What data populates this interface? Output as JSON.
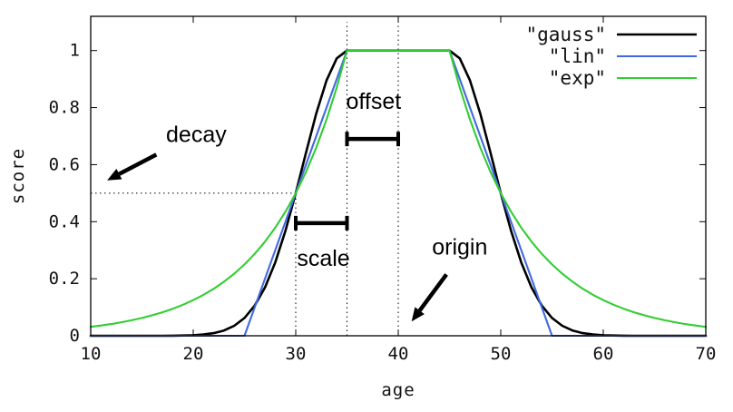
{
  "figure": {
    "background": "#ffffff",
    "text_color": "#111111"
  },
  "chart_data": {
    "type": "line",
    "title": "",
    "xlabel": "age",
    "ylabel": "score",
    "xlim": [
      10,
      70
    ],
    "ylim": [
      0,
      1.12
    ],
    "xticks": [
      10,
      20,
      30,
      40,
      50,
      60,
      70
    ],
    "yticks": [
      0,
      0.2,
      0.4,
      0.6,
      0.8,
      1
    ],
    "grid": false,
    "legend_position": "top-right-inside",
    "x": [
      10,
      11,
      12,
      13,
      14,
      15,
      16,
      17,
      18,
      19,
      20,
      21,
      22,
      23,
      24,
      25,
      26,
      27,
      28,
      29,
      30,
      31,
      32,
      33,
      34,
      35,
      36,
      37,
      38,
      39,
      40,
      41,
      42,
      43,
      44,
      45,
      46,
      47,
      48,
      49,
      50,
      51,
      52,
      53,
      54,
      55,
      56,
      57,
      58,
      59,
      60,
      61,
      62,
      63,
      64,
      65,
      66,
      67,
      68,
      69,
      70
    ],
    "series": [
      {
        "name": "\"gauss\"",
        "color": "#000000",
        "values": [
          0,
          0,
          0,
          0,
          0,
          0,
          0,
          0.0001,
          0.0003,
          0.0008,
          0.002,
          0.0044,
          0.0092,
          0.0185,
          0.0349,
          0.0625,
          0.1058,
          0.1696,
          0.257,
          0.3686,
          0.5,
          0.6417,
          0.7792,
          0.895,
          0.9727,
          1,
          1,
          1,
          1,
          1,
          1,
          1,
          1,
          1,
          1,
          1,
          0.9727,
          0.895,
          0.7792,
          0.6417,
          0.5,
          0.3686,
          0.257,
          0.1696,
          0.1058,
          0.0625,
          0.0349,
          0.0185,
          0.0092,
          0.0044,
          0.002,
          0.0008,
          0.0003,
          0.0001,
          0,
          0,
          0,
          0,
          0,
          0,
          0
        ]
      },
      {
        "name": "\"lin\"",
        "color": "#4169e1",
        "values": [
          0,
          0,
          0,
          0,
          0,
          0,
          0,
          0,
          0,
          0,
          0,
          0,
          0,
          0,
          0,
          0,
          0.1,
          0.2,
          0.3,
          0.4,
          0.5,
          0.6,
          0.7,
          0.8,
          0.9,
          1,
          1,
          1,
          1,
          1,
          1,
          1,
          1,
          1,
          1,
          1,
          0.9,
          0.8,
          0.7,
          0.6,
          0.5,
          0.4,
          0.3,
          0.2,
          0.1,
          0,
          0,
          0,
          0,
          0,
          0,
          0,
          0,
          0,
          0,
          0,
          0,
          0,
          0,
          0,
          0
        ]
      },
      {
        "name": "\"exp\"",
        "color": "#32cd32",
        "values": [
          0.0313,
          0.0359,
          0.0412,
          0.0474,
          0.0544,
          0.0625,
          0.0718,
          0.0825,
          0.0947,
          0.1088,
          0.125,
          0.1436,
          0.1649,
          0.1895,
          0.2176,
          0.25,
          0.2872,
          0.3299,
          0.3789,
          0.4353,
          0.5,
          0.5743,
          0.6598,
          0.7579,
          0.8706,
          1,
          1,
          1,
          1,
          1,
          1,
          1,
          1,
          1,
          1,
          1,
          0.8706,
          0.7579,
          0.6598,
          0.5743,
          0.5,
          0.4353,
          0.3789,
          0.3299,
          0.2872,
          0.25,
          0.2176,
          0.1895,
          0.1649,
          0.1436,
          0.125,
          0.1088,
          0.0947,
          0.0825,
          0.0718,
          0.0625,
          0.0544,
          0.0474,
          0.0412,
          0.0359,
          0.0313
        ]
      }
    ],
    "guides": {
      "dotted_vlines": [
        {
          "x": 30,
          "y1": 0,
          "y2": 0.5
        },
        {
          "x": 35,
          "y1": 0,
          "y2": 1.1
        },
        {
          "x": 40,
          "y1": 0,
          "y2": 1.1
        }
      ],
      "dotted_hline": {
        "y": 0.5,
        "x1": 10,
        "x2": 30
      }
    },
    "annotations": [
      {
        "id": "decay",
        "label": "decay",
        "text_at": [
          20.3,
          0.68
        ],
        "arrow": {
          "from": [
            16.4,
            0.635
          ],
          "to": [
            11.6,
            0.545
          ]
        }
      },
      {
        "id": "offset",
        "label": "offset",
        "text_at": [
          37.6,
          0.795
        ],
        "bracket": {
          "x1": 35,
          "x2": 40,
          "y": 0.69
        }
      },
      {
        "id": "scale",
        "label": "scale",
        "text_at": [
          32.7,
          0.245
        ],
        "bracket": {
          "x1": 30,
          "x2": 35,
          "y": 0.395
        }
      },
      {
        "id": "origin",
        "label": "origin",
        "text_at": [
          46.0,
          0.285
        ],
        "arrow": {
          "from": [
            44.7,
            0.215
          ],
          "to": [
            41.3,
            0.05
          ]
        }
      }
    ]
  }
}
